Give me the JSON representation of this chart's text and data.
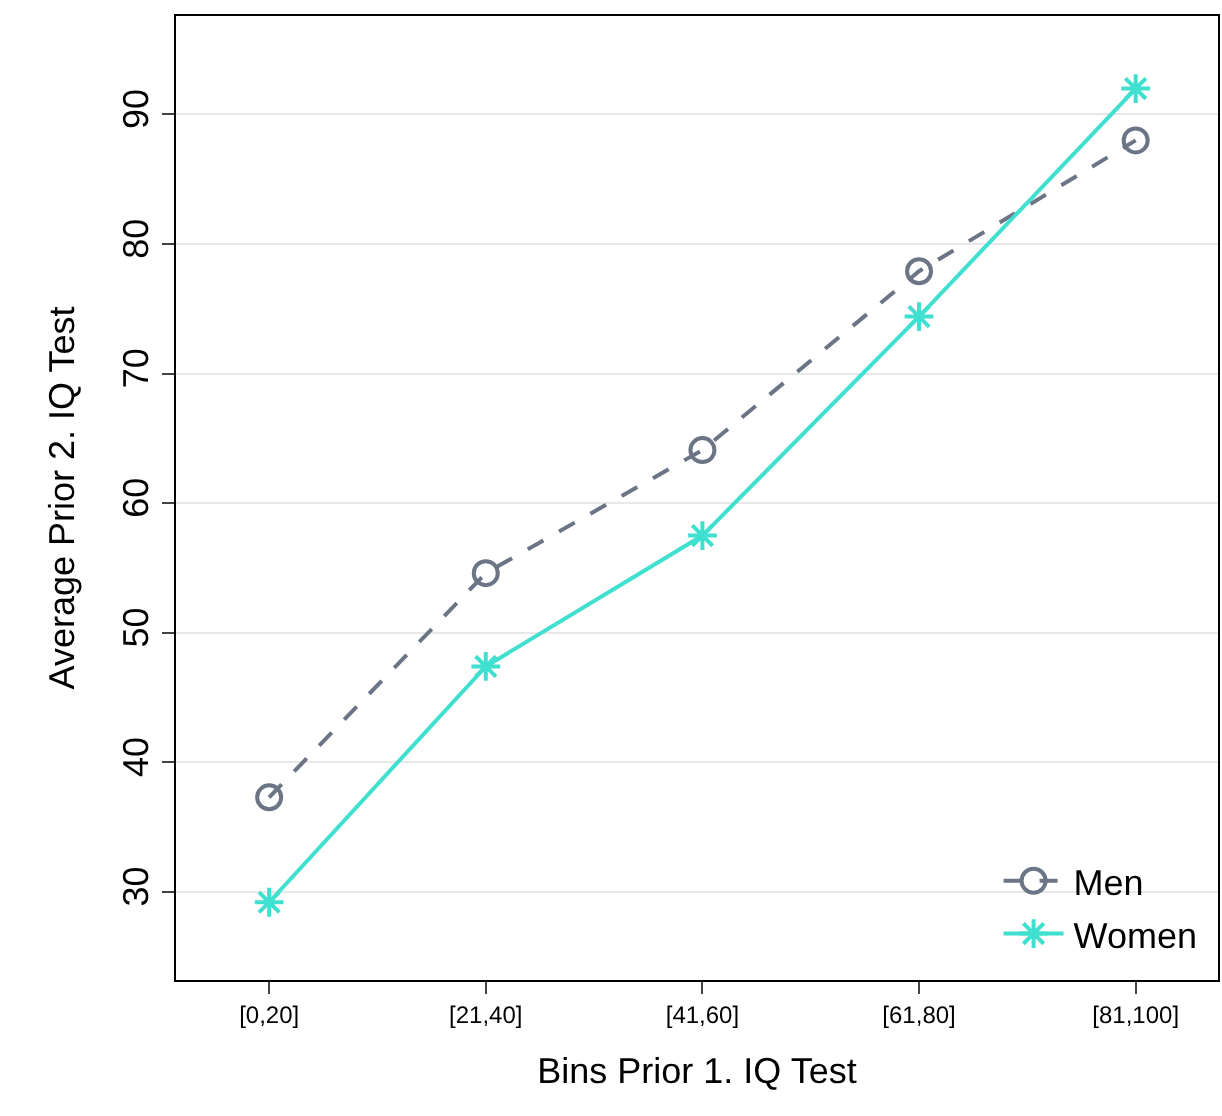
{
  "chart_data": {
    "type": "line",
    "xlabel": "Bins Prior 1. IQ Test",
    "ylabel": "Average Prior 2. IQ Test",
    "categories": [
      "[0,20]",
      "[21,40]",
      "[41,60]",
      "[61,80]",
      "[81,100]"
    ],
    "series": [
      {
        "name": "Men",
        "color": "#6c7585",
        "values": [
          37.3,
          54.6,
          64.1,
          77.9,
          88.0
        ],
        "marker": "circle",
        "line_style": "dashed"
      },
      {
        "name": "Women",
        "color": "#40e0d0",
        "values": [
          29.2,
          47.4,
          57.5,
          74.4,
          92.0
        ],
        "marker": "cross",
        "line_style": "solid"
      }
    ],
    "ylim": [
      23.2,
      97.6
    ],
    "yticks": [
      30,
      40,
      50,
      60,
      70,
      80,
      90
    ],
    "grid": "y",
    "legend": "bottom right"
  }
}
